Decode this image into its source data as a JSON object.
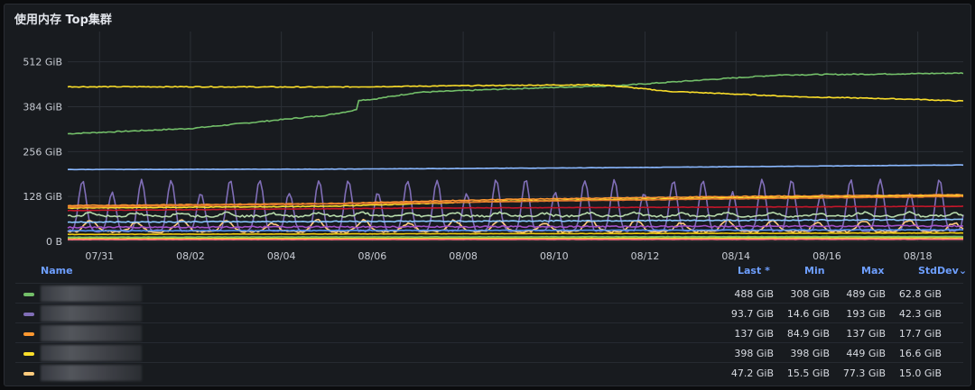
{
  "panel": {
    "title": "使用内存 Top集群"
  },
  "legend": {
    "headers": {
      "name": "Name",
      "last": "Last *",
      "min": "Min",
      "max": "Max",
      "stddev": "StdDev",
      "sort_icon": "chevron-down-icon"
    },
    "rows": [
      {
        "color": "#73bf69",
        "last": "488 GiB",
        "min": "308 GiB",
        "max": "489 GiB",
        "stddev": "62.8 GiB"
      },
      {
        "color": "#806eb7",
        "last": "93.7 GiB",
        "min": "14.6 GiB",
        "max": "193 GiB",
        "stddev": "42.3 GiB"
      },
      {
        "color": "#ff9830",
        "last": "137 GiB",
        "min": "84.9 GiB",
        "max": "137 GiB",
        "stddev": "17.7 GiB"
      },
      {
        "color": "#fade2a",
        "last": "398 GiB",
        "min": "398 GiB",
        "max": "449 GiB",
        "stddev": "16.6 GiB"
      },
      {
        "color": "#ffcb7d",
        "last": "47.2 GiB",
        "min": "15.5 GiB",
        "max": "77.3 GiB",
        "stddev": "15.0 GiB"
      }
    ]
  },
  "chart_data": {
    "type": "line",
    "ylim": [
      0,
      560
    ],
    "y_ticks": [
      0,
      128,
      256,
      384,
      512
    ],
    "y_tick_labels": [
      "0 B",
      "128 GiB",
      "256 GiB",
      "384 GiB",
      "512 GiB"
    ],
    "x_ticks": [
      "07/31",
      "08/02",
      "08/04",
      "08/06",
      "08/08",
      "08/10",
      "08/12",
      "08/14",
      "08/16",
      "08/18"
    ],
    "x_tick_days": [
      1,
      3,
      5,
      7,
      9,
      11,
      13,
      15,
      17,
      19
    ],
    "x_range_days": [
      0.3,
      20.0
    ],
    "grid": true,
    "series": [
      {
        "color": "#73bf69",
        "kind": "trend",
        "points": [
          [
            0.3,
            307
          ],
          [
            3,
            322
          ],
          [
            6,
            360
          ],
          [
            6.65,
            375
          ],
          [
            6.7,
            403
          ],
          [
            7,
            405
          ],
          [
            8,
            425
          ],
          [
            10,
            435
          ],
          [
            12.5,
            445
          ],
          [
            14,
            458
          ],
          [
            16,
            475
          ],
          [
            18,
            477
          ],
          [
            20,
            480
          ]
        ],
        "noise": 1.5
      },
      {
        "color": "#fade2a",
        "kind": "trend",
        "points": [
          [
            0.3,
            441
          ],
          [
            3,
            441
          ],
          [
            6,
            440
          ],
          [
            9,
            444
          ],
          [
            12,
            447
          ],
          [
            12.6,
            440
          ],
          [
            13.5,
            428
          ],
          [
            15,
            420
          ],
          [
            16.5,
            412
          ],
          [
            18,
            408
          ],
          [
            19,
            405
          ],
          [
            20,
            400
          ]
        ],
        "noise": 1.2
      },
      {
        "color": "#8ab8ff",
        "kind": "trend",
        "points": [
          [
            0.3,
            205
          ],
          [
            6,
            206
          ],
          [
            12,
            210
          ],
          [
            16,
            214
          ],
          [
            20,
            218
          ]
        ],
        "noise": 0.4
      },
      {
        "color": "#806eb7",
        "kind": "spikes",
        "base": 30,
        "peak": 175,
        "period": 0.65,
        "points": []
      },
      {
        "color": "#ff9830",
        "kind": "trend",
        "points": [
          [
            0.3,
            102
          ],
          [
            6,
            108
          ],
          [
            10,
            120
          ],
          [
            15,
            128
          ],
          [
            20,
            133
          ]
        ],
        "noise": 1
      },
      {
        "color": "#fade2a",
        "kind": "trend",
        "points": [
          [
            0.3,
            95
          ],
          [
            6,
            100
          ],
          [
            10,
            115
          ],
          [
            15,
            124
          ],
          [
            20,
            130
          ]
        ],
        "noise": 1
      },
      {
        "color": "#e0752d",
        "kind": "trend",
        "points": [
          [
            0.3,
            98
          ],
          [
            8,
            110
          ],
          [
            14,
            120
          ],
          [
            20,
            128
          ]
        ],
        "noise": 0.8
      },
      {
        "color": "#c4162a",
        "kind": "trend",
        "points": [
          [
            0.3,
            88
          ],
          [
            8,
            95
          ],
          [
            20,
            100
          ]
        ],
        "noise": 0.6
      },
      {
        "color": "#ffcb7d",
        "kind": "spikes",
        "base": 28,
        "peak": 60,
        "period": 1.0,
        "points": []
      },
      {
        "color": "#b7dbab",
        "kind": "spikes",
        "base": 72,
        "peak": 82,
        "period": 1.0,
        "points": []
      },
      {
        "color": "#8ac6ff",
        "kind": "trend",
        "points": [
          [
            0.3,
            55
          ],
          [
            10,
            58
          ],
          [
            20,
            62
          ]
        ],
        "noise": 1.5
      },
      {
        "color": "#f2cc0c",
        "kind": "trend",
        "points": [
          [
            0.3,
            20
          ],
          [
            10,
            22
          ],
          [
            20,
            24
          ]
        ],
        "noise": 0.5
      },
      {
        "color": "#fade2a",
        "kind": "trend",
        "points": [
          [
            0.3,
            8
          ],
          [
            20,
            10
          ]
        ],
        "noise": 0.3
      },
      {
        "color": "#a352cc",
        "kind": "trend",
        "points": [
          [
            0.3,
            40
          ],
          [
            10,
            42
          ],
          [
            20,
            44
          ]
        ],
        "noise": 2
      },
      {
        "color": "#73bf69",
        "kind": "trend",
        "points": [
          [
            0.3,
            12
          ],
          [
            20,
            14
          ]
        ],
        "noise": 0.5
      },
      {
        "color": "#ff7383",
        "kind": "trend",
        "points": [
          [
            0.3,
            5
          ],
          [
            20,
            6
          ]
        ],
        "noise": 0.3
      },
      {
        "color": "#5794f2",
        "kind": "trend",
        "points": [
          [
            0.3,
            30
          ],
          [
            20,
            33
          ]
        ],
        "noise": 0.8
      }
    ]
  }
}
